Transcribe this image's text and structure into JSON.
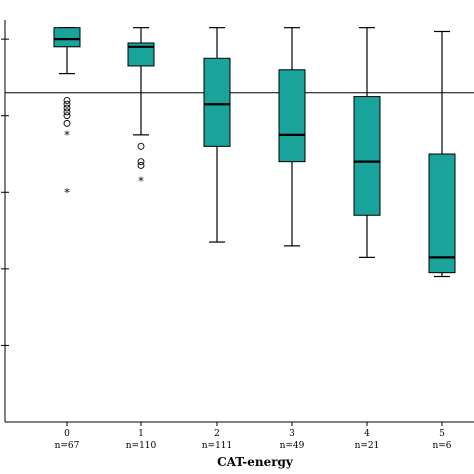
{
  "chart_data": {
    "type": "boxplot",
    "xlabel": "CAT-energy",
    "ylabel": "",
    "title": "",
    "ylim": [
      0,
      105
    ],
    "reference_line": 86,
    "colors": {
      "box": "#1aa39a",
      "stroke": "#000000"
    },
    "categories": [
      "0",
      "1",
      "2",
      "3",
      "4",
      "5"
    ],
    "n_labels": [
      "n=67",
      "n=110",
      "n=111",
      "n=49",
      "n=21",
      "n=6"
    ],
    "boxes": [
      {
        "category": "0",
        "whisker_low": 91,
        "q1": 98,
        "median": 100,
        "q3": 103,
        "whisker_high": 103,
        "outliers": [
          84,
          83,
          82,
          81,
          80,
          78
        ],
        "extremes": [
          75,
          60
        ]
      },
      {
        "category": "1",
        "whisker_low": 75,
        "q1": 93,
        "median": 98,
        "q3": 99,
        "whisker_high": 103,
        "outliers": [
          72,
          68,
          67
        ],
        "extremes": [
          63
        ]
      },
      {
        "category": "2",
        "whisker_low": 47,
        "q1": 72,
        "median": 83,
        "q3": 95,
        "whisker_high": 103,
        "outliers": [],
        "extremes": []
      },
      {
        "category": "3",
        "whisker_low": 46,
        "q1": 68,
        "median": 75,
        "q3": 92,
        "whisker_high": 103,
        "outliers": [],
        "extremes": []
      },
      {
        "category": "4",
        "whisker_low": 43,
        "q1": 54,
        "median": 68,
        "q3": 85,
        "whisker_high": 103,
        "outliers": [],
        "extremes": []
      },
      {
        "category": "5",
        "whisker_low": 38,
        "q1": 39,
        "median": 43,
        "q3": 70,
        "whisker_high": 102,
        "outliers": [],
        "extremes": []
      }
    ]
  }
}
